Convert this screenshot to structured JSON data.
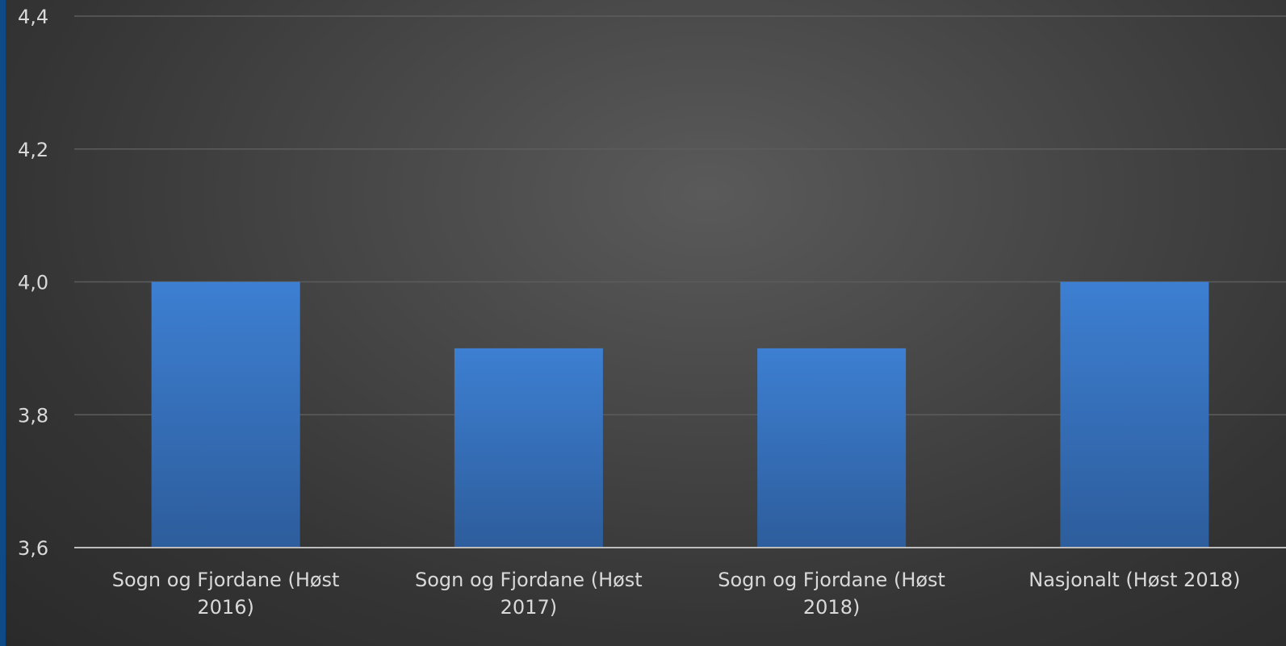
{
  "chart_data": {
    "type": "bar",
    "categories": [
      [
        "Sogn og Fjordane (Høst",
        "2016)"
      ],
      [
        "Sogn og Fjordane (Høst",
        "2017)"
      ],
      [
        "Sogn og Fjordane (Høst",
        "2018)"
      ],
      [
        "Nasjonalt (Høst 2018)"
      ]
    ],
    "values": [
      4.0,
      3.9,
      3.9,
      4.0
    ],
    "ylim": [
      3.6,
      4.4
    ],
    "yticks": [
      3.6,
      3.8,
      4.0,
      4.2,
      4.4
    ],
    "ytick_labels": [
      "3,6",
      "3,8",
      "4,0",
      "4,2",
      "4,4"
    ],
    "title": "",
    "xlabel": "",
    "ylabel": "",
    "grid": true,
    "legend": "none",
    "colors": {
      "bar_top": "#3d7fd2",
      "bar_bottom": "#2d5d9c",
      "text": "#d9d9d9",
      "grid": "#5c5c5c",
      "axis": "#bdbdbd",
      "left_edge": "#0d4a86"
    }
  }
}
